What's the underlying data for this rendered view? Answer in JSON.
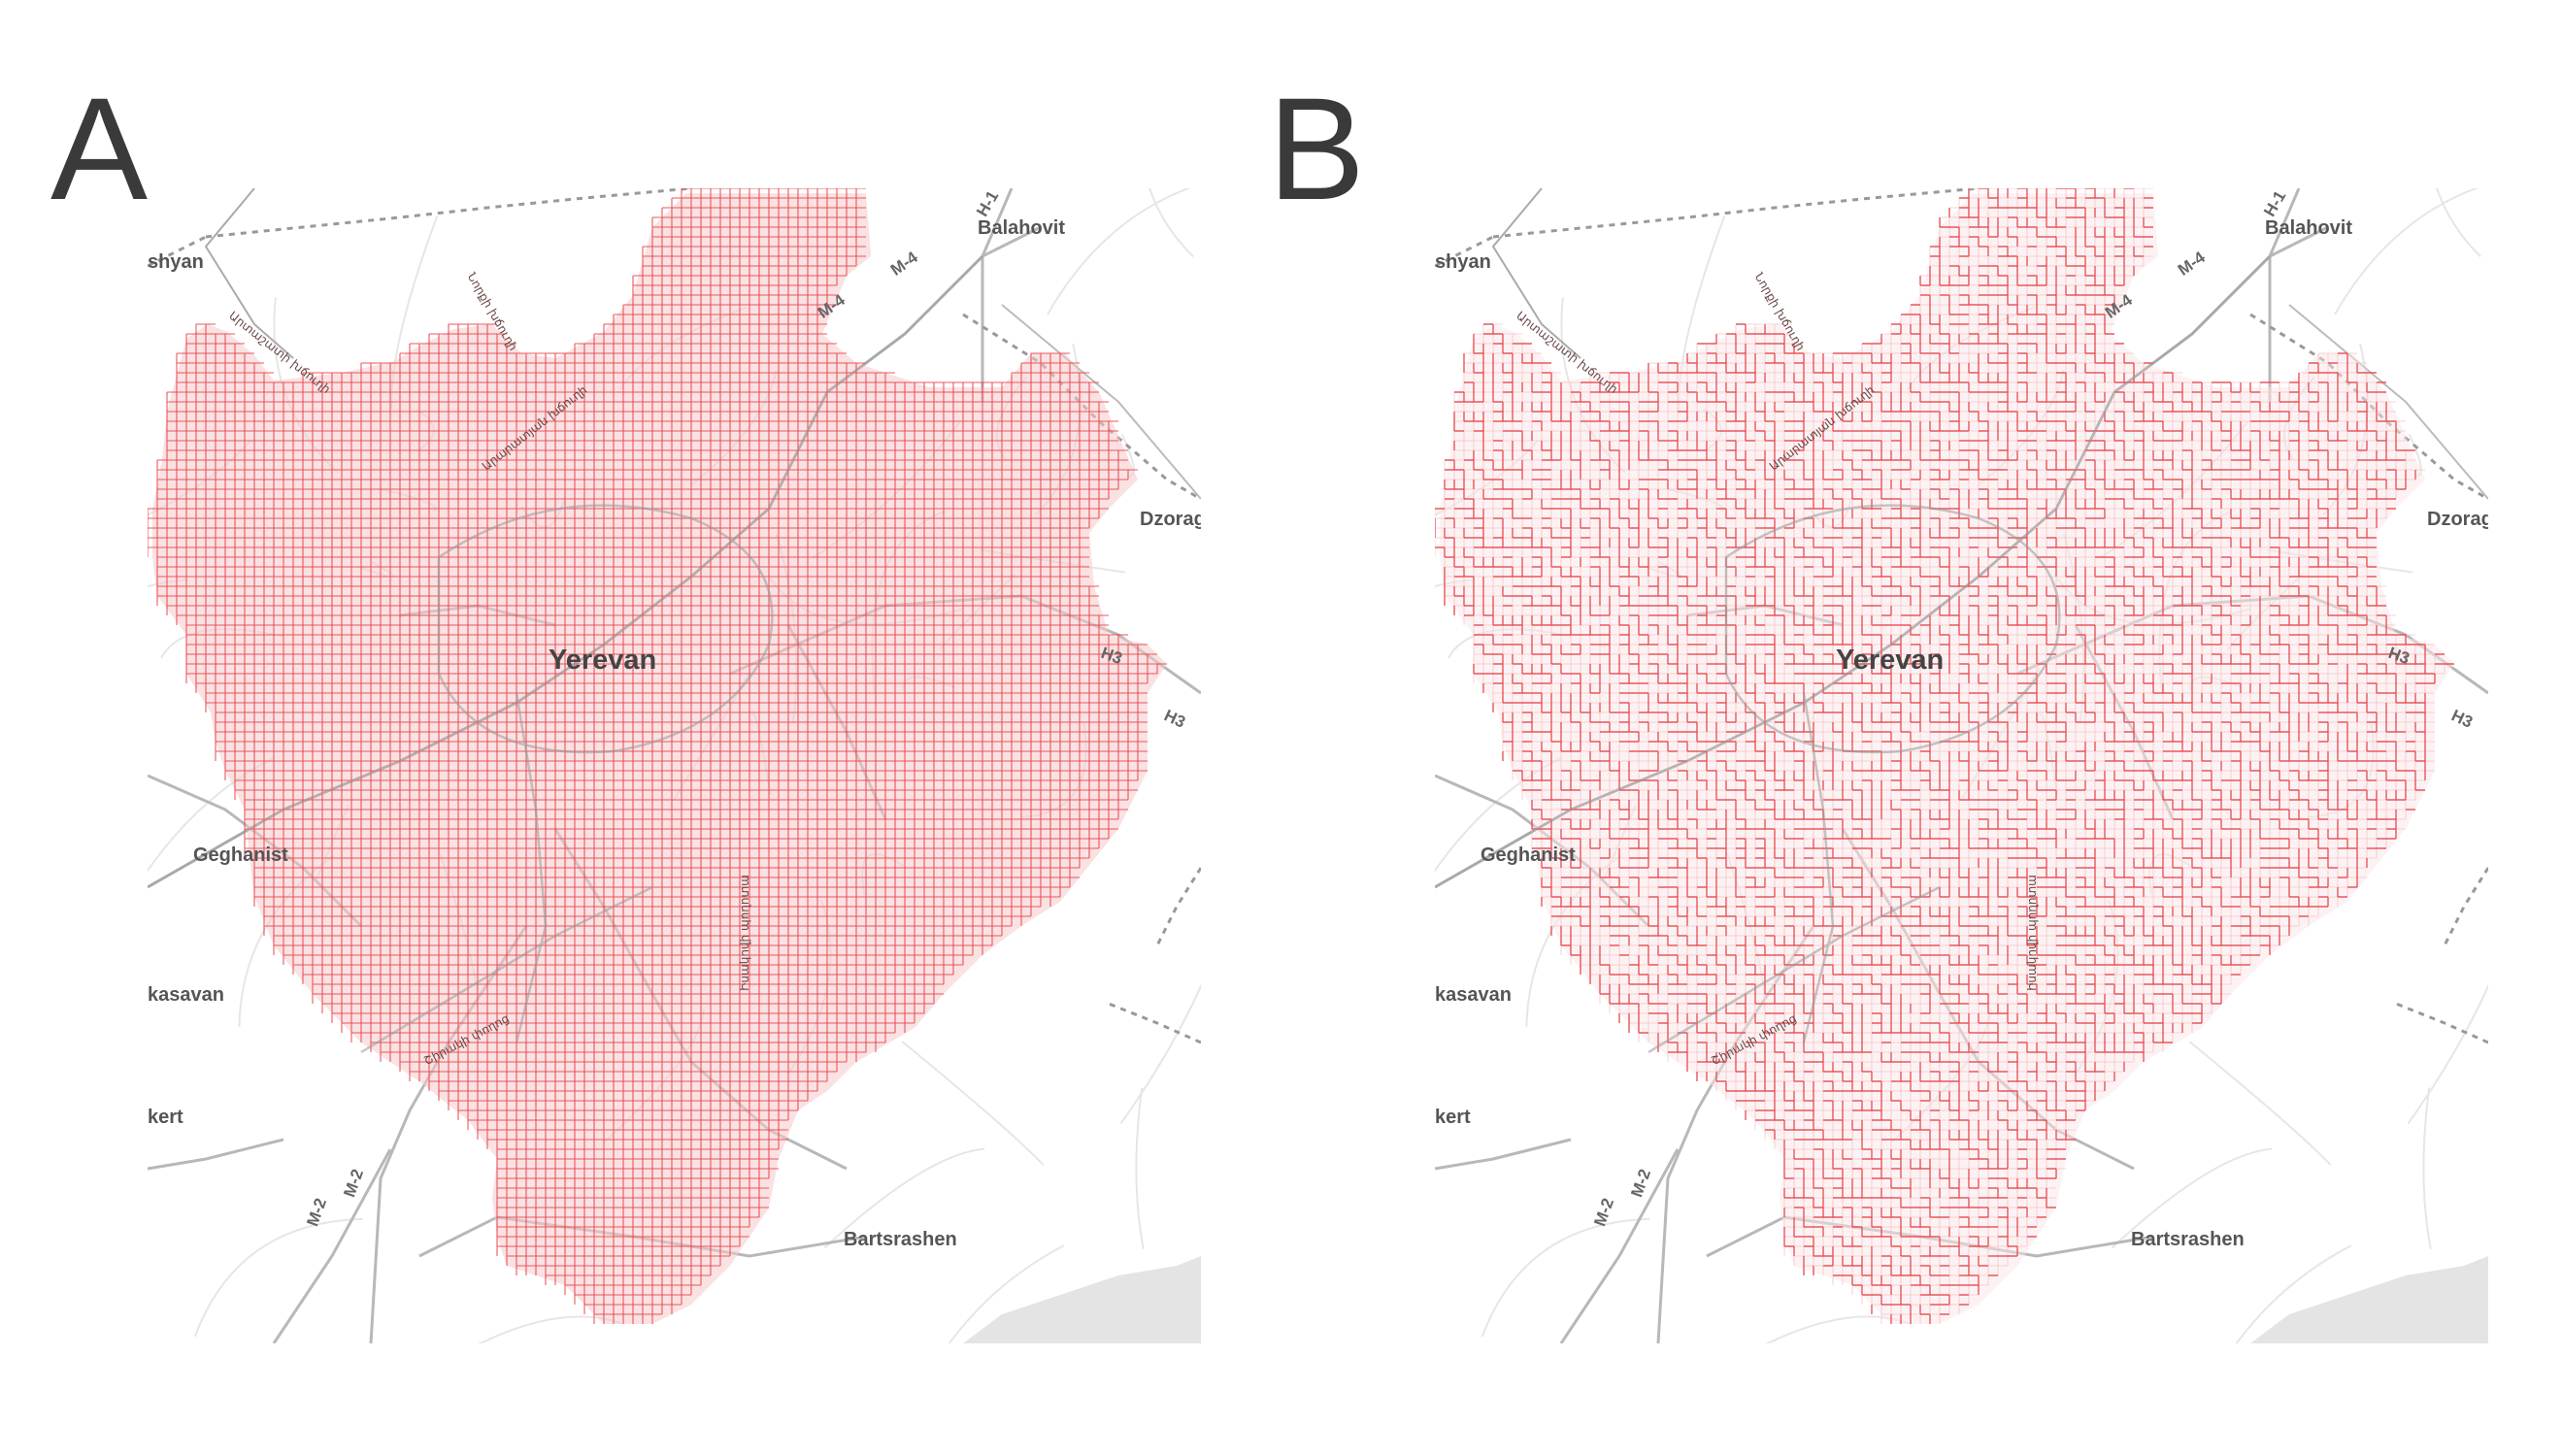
{
  "panels": [
    {
      "letter": "A",
      "pattern": "full-grid",
      "labels": {
        "city": "Yerevan",
        "places": [
          "shyan",
          "Balahovit",
          "Dzorag",
          "Geghanist",
          "kasavan",
          "kert",
          "Bartsrashen"
        ],
        "highways": [
          "H-1",
          "M-4",
          "M-4",
          "H3",
          "H3",
          "M-2",
          "M-2"
        ],
        "streets": [
          "Արտաշատի խճուղի",
          "Նորքի խճուղի",
          "Արարատյան խճուղի",
          "Իսակովի պողոտա",
          "Շիրակի փողոց"
        ]
      }
    },
    {
      "letter": "B",
      "pattern": "sparse-grid",
      "labels": {
        "city": "Yerevan",
        "places": [
          "shyan",
          "Balahovit",
          "Dzorag",
          "Geghanist",
          "kasavan",
          "kert",
          "Bartsrashen"
        ],
        "highways": [
          "H-1",
          "M-4",
          "M-4",
          "H3",
          "H3",
          "M-2",
          "M-2"
        ],
        "streets": [
          "Արտաշատի խճուղի",
          "Նորքի խճուղի",
          "Արարատյան խճուղի",
          "Իսակովի պողոտա",
          "Շիրակի փողոց"
        ]
      }
    }
  ],
  "colors": {
    "grid": "#e8474e",
    "fill": "#f6c9cb",
    "road": "#b8b8b8",
    "border": "#999999"
  }
}
